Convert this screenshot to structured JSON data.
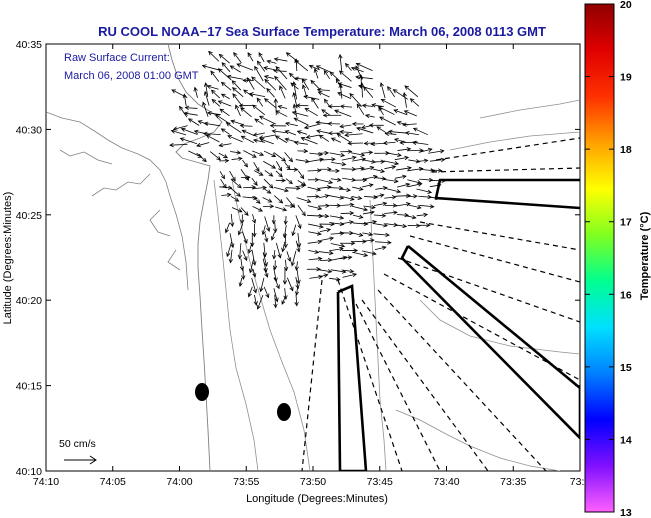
{
  "title": "RU COOL  NOAA−17  Sea Surface Temperature:  March 06, 2008 0113 GMT",
  "annotation": {
    "line1": "Raw Surface Current:",
    "line2": "March 06, 2008 01:00 GMT"
  },
  "scale_label": "50 cm/s",
  "x_axis": {
    "label": "Longitude (Degrees:Minutes)",
    "ticks": [
      "74:10",
      "74:05",
      "74:00",
      "73:55",
      "73:50",
      "73:45",
      "73:40",
      "73:35",
      "73:3"
    ]
  },
  "y_axis": {
    "label": "Latitude (Degrees:Minutes)",
    "ticks": [
      "40:35",
      "40:30",
      "40:25",
      "40:20",
      "40:15",
      "40:10"
    ]
  },
  "colorbar": {
    "label": "Temperature (°C)",
    "ticks": [
      "20",
      "19",
      "18",
      "17",
      "16",
      "15",
      "14",
      "13"
    ],
    "min": 13,
    "max": 20,
    "colors": [
      "#ff60ff",
      "#8010ff",
      "#0000ff",
      "#0080ff",
      "#00e0ff",
      "#00ff90",
      "#80ff20",
      "#ffff00",
      "#ffa000",
      "#ff3000",
      "#e00000",
      "#900000"
    ]
  }
}
